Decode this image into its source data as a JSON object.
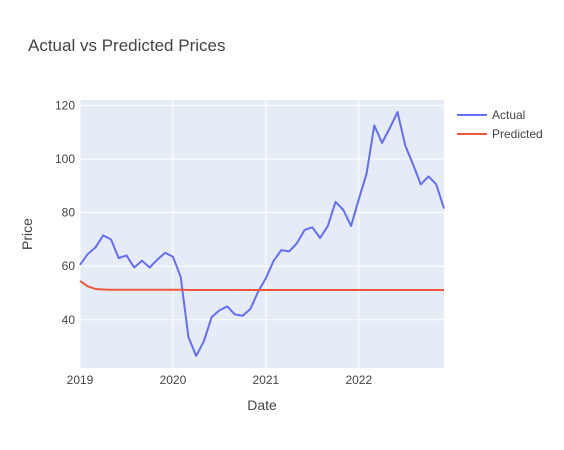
{
  "chart_data": {
    "type": "line",
    "title": "Actual vs Predicted Prices",
    "xlabel": "Date",
    "ylabel": "Price",
    "x_range": [
      "2019-01",
      "2022-12"
    ],
    "ylim": [
      22,
      122
    ],
    "x_ticks": [
      {
        "value": "2019-01",
        "label": "2019"
      },
      {
        "value": "2020-01",
        "label": "2020"
      },
      {
        "value": "2021-01",
        "label": "2021"
      },
      {
        "value": "2022-01",
        "label": "2022"
      }
    ],
    "y_ticks": [
      40,
      60,
      80,
      100,
      120
    ],
    "grid": true,
    "legend_position": "top-right",
    "x": [
      "2019-01",
      "2019-02",
      "2019-03",
      "2019-04",
      "2019-05",
      "2019-06",
      "2019-07",
      "2019-08",
      "2019-09",
      "2019-10",
      "2019-11",
      "2019-12",
      "2020-01",
      "2020-02",
      "2020-03",
      "2020-04",
      "2020-05",
      "2020-06",
      "2020-07",
      "2020-08",
      "2020-09",
      "2020-10",
      "2020-11",
      "2020-12",
      "2021-01",
      "2021-02",
      "2021-03",
      "2021-04",
      "2021-05",
      "2021-06",
      "2021-07",
      "2021-08",
      "2021-09",
      "2021-10",
      "2021-11",
      "2021-12",
      "2022-01",
      "2022-02",
      "2022-03",
      "2022-04",
      "2022-05",
      "2022-06",
      "2022-07",
      "2022-08",
      "2022-09",
      "2022-10",
      "2022-11",
      "2022-12"
    ],
    "series": [
      {
        "name": "Actual",
        "color": "#636efa",
        "values": [
          60.5,
          64.5,
          67,
          71.5,
          70,
          63,
          64,
          59.5,
          62,
          59.5,
          62.5,
          65,
          63.5,
          56,
          33.5,
          26.5,
          32,
          41,
          43.5,
          45,
          42,
          41.5,
          44,
          50.5,
          55.5,
          62,
          66,
          65.5,
          68.5,
          73.5,
          74.5,
          70.5,
          75,
          84,
          81,
          75,
          85,
          94.5,
          112.5,
          106,
          111.5,
          117.5,
          105,
          98,
          90.5,
          93.5,
          90.5,
          81.5
        ]
      },
      {
        "name": "Predicted",
        "color": "#ef553b",
        "values": [
          54.5,
          52.5,
          51.5,
          51.3,
          51.2,
          51.2,
          51.2,
          51.2,
          51.2,
          51.2,
          51.2,
          51.2,
          51.2,
          51.2,
          51.1,
          51.1,
          51.1,
          51.1,
          51.1,
          51.1,
          51.1,
          51.1,
          51.1,
          51.1,
          51.1,
          51.1,
          51.1,
          51.1,
          51.1,
          51.1,
          51.1,
          51.1,
          51.1,
          51.1,
          51.1,
          51.1,
          51.1,
          51.1,
          51.1,
          51.1,
          51.1,
          51.1,
          51.1,
          51.1,
          51.1,
          51.1,
          51.1,
          51.1
        ]
      }
    ]
  }
}
